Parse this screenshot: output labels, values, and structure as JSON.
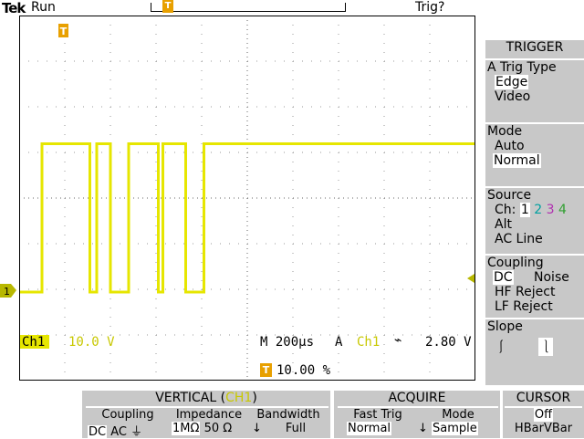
{
  "status": {
    "brand": "Tek",
    "state": "Run",
    "trigger_state": "Trig?"
  },
  "markers": {
    "trigger_marker": "T",
    "ch1_marker": "1"
  },
  "readout": {
    "ch1_label": "Ch1",
    "ch1_scale": "10.0 V",
    "timebase": "M 200µs",
    "trig_source_prefix": "A",
    "trig_source": "Ch1",
    "trig_level": "2.80 V",
    "trig_position": "10.00 %"
  },
  "side_menu": {
    "title": "TRIGGER",
    "trig_type": {
      "label": "A Trig Type",
      "options": [
        "Edge",
        "Video"
      ],
      "selected": "Edge"
    },
    "mode": {
      "label": "Mode",
      "options": [
        "Auto",
        "Normal"
      ],
      "selected": "Normal"
    },
    "source": {
      "label": "Source",
      "ch_prefix": "Ch:",
      "channels": [
        "1",
        "2",
        "3",
        "4"
      ],
      "alt": "Alt",
      "ac_line": "AC Line"
    },
    "coupling": {
      "label": "Coupling",
      "options": [
        "DC",
        "Noise",
        "HF Reject",
        "LF Reject"
      ],
      "selected": "DC"
    },
    "slope": {
      "label": "Slope"
    }
  },
  "bottom_menu": {
    "vertical": {
      "title_prefix": "VERTICAL (",
      "title_ch": "CH1",
      "title_suffix": ")",
      "coupling": {
        "label": "Coupling",
        "dc": "DC",
        "ac": "AC"
      },
      "impedance": {
        "label": "Impedance",
        "opt1": "1MΩ",
        "opt2": "50 Ω"
      },
      "bandwidth": {
        "label": "Bandwidth",
        "value": "Full"
      }
    },
    "acquire": {
      "title": "ACQUIRE",
      "fast_trig": {
        "label": "Fast Trig",
        "value": "Normal"
      },
      "mode": {
        "label": "Mode",
        "value": "Sample"
      }
    },
    "cursor": {
      "title": "CURSOR",
      "state": "Off",
      "hbar": "HBar",
      "vbar": "VBar"
    }
  },
  "colors": {
    "ch1": "#e6e600",
    "ch2": "#00c0c0",
    "ch3": "#c040c0",
    "ch4": "#40c040",
    "trigger": "#e8a000",
    "menu_bg": "#c8c8c8"
  },
  "chart_data": {
    "type": "line",
    "series": [
      {
        "values_desc": "digital pulse train",
        "x": [
          0,
          0.5,
          0.5,
          1.55,
          1.55,
          1.7,
          1.7,
          2,
          2,
          2.4,
          2.4,
          3.05,
          3.05,
          3.15,
          3.15,
          3.65,
          3.65,
          4.05,
          4.05,
          10
        ],
        "y": [
          0,
          0,
          6.5,
          6.5,
          0,
          0,
          6.5,
          6.5,
          0,
          0,
          6.5,
          6.5,
          0,
          0,
          6.5,
          6.5,
          0,
          0,
          6.5,
          6.5
        ]
      }
    ]
  }
}
